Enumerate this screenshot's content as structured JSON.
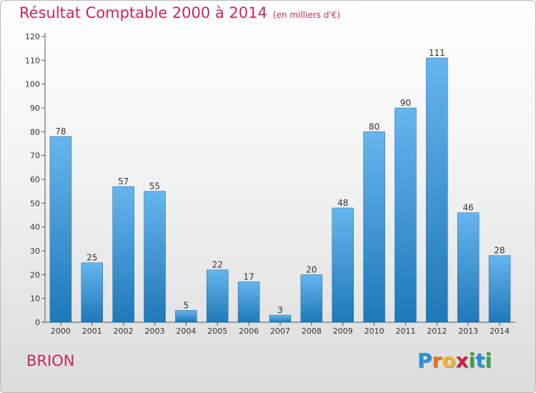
{
  "title": "Résultat Comptable 2000 à 2014",
  "subtitle": "(en milliers d'€)",
  "commune": "BRION",
  "logo": {
    "text": "Proxiti",
    "letters": [
      "P",
      "r",
      "o",
      "x",
      "i",
      "t",
      "i"
    ],
    "colors": [
      "#2a8fd6",
      "#e8731e",
      "#f0b323",
      "#cc2244",
      "#3aa14a",
      "#2a8fd6",
      "#3aa14a"
    ]
  },
  "colors": {
    "title": "#c8285a",
    "bar_top": "#66b5ee",
    "bar_bottom": "#1f78b8"
  },
  "chart_data": {
    "type": "bar",
    "title": "Résultat Comptable 2000 à 2014",
    "subtitle": "(en milliers d'€)",
    "categories": [
      "2000",
      "2001",
      "2002",
      "2003",
      "2004",
      "2005",
      "2006",
      "2007",
      "2008",
      "2009",
      "2010",
      "2011",
      "2012",
      "2013",
      "2014"
    ],
    "values": [
      78,
      25,
      57,
      55,
      5,
      22,
      17,
      3,
      20,
      48,
      80,
      90,
      111,
      46,
      28
    ],
    "ylim": [
      0,
      120
    ],
    "yticks": [
      0,
      10,
      20,
      30,
      40,
      50,
      60,
      70,
      80,
      90,
      100,
      110,
      120
    ],
    "grid": false,
    "legend": "none"
  }
}
